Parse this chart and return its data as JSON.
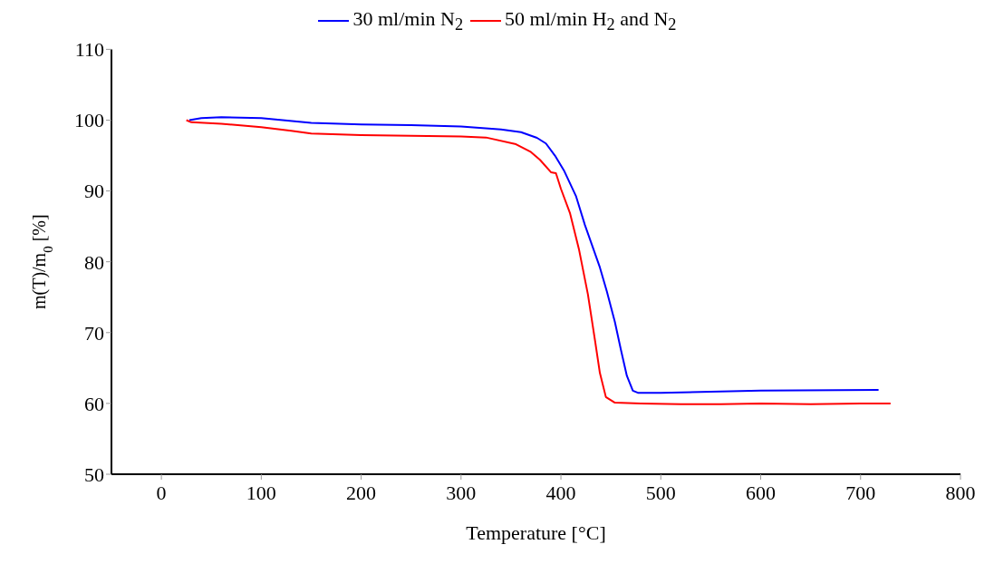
{
  "chart_data": {
    "type": "line",
    "xlabel": "Temperature [°C]",
    "ylabel": "m(T)/m$_{0}$ [%]",
    "xlim": [
      -50,
      800
    ],
    "xticks": [
      0,
      100,
      200,
      300,
      400,
      500,
      600,
      700,
      800
    ],
    "ylim": [
      50,
      110
    ],
    "yticks": [
      50,
      60,
      70,
      80,
      90,
      100,
      110
    ],
    "grid": false,
    "legend": "top",
    "marker": "none",
    "line_style": "solid",
    "series": [
      {
        "name": "30 ml/min N$_{2}$",
        "color": "#0000ff",
        "x": [
          28,
          40,
          60,
          100,
          150,
          200,
          250,
          300,
          340,
          360,
          376,
          385,
          394,
          403,
          415,
          424,
          439,
          446,
          454,
          460,
          466,
          472,
          477,
          500,
          600,
          718
        ],
        "values": [
          100.0,
          100.3,
          100.4,
          100.3,
          99.6,
          99.4,
          99.3,
          99.1,
          98.7,
          98.3,
          97.5,
          96.7,
          95.0,
          92.9,
          89.3,
          85.2,
          79.2,
          75.8,
          71.5,
          67.6,
          63.9,
          61.8,
          61.5,
          61.5,
          61.8,
          61.9
        ]
      },
      {
        "name": "50 ml/min H$_{2}$ and N$_{2}$",
        "color": "#ff0000",
        "x": [
          25,
          30,
          60,
          100,
          130,
          150,
          200,
          250,
          300,
          325,
          355,
          370,
          379,
          390,
          395,
          400,
          409,
          418,
          427,
          434,
          439,
          445,
          454,
          480,
          520,
          560,
          600,
          650,
          700,
          730
        ],
        "values": [
          100.0,
          99.7,
          99.5,
          99.0,
          98.5,
          98.1,
          97.9,
          97.8,
          97.7,
          97.55,
          96.6,
          95.5,
          94.4,
          92.65,
          92.5,
          90.3,
          86.9,
          81.8,
          75.4,
          69.0,
          64.3,
          60.9,
          60.1,
          60.0,
          59.9,
          59.9,
          60.0,
          59.9,
          60.0,
          60.0
        ]
      }
    ]
  }
}
